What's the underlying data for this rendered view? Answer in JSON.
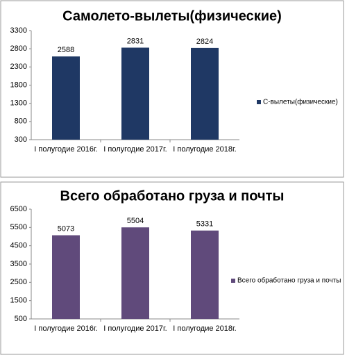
{
  "chart_data": [
    {
      "type": "bar",
      "title": "Самолето-вылеты(физические)",
      "categories": [
        "I полугодие 2016г.",
        "I полугодие 2017г.",
        "I полугодие 2018г."
      ],
      "series": [
        {
          "name": "С-вылеты(физические)",
          "color": "#1f3864",
          "values": [
            2588,
            2831,
            2824
          ]
        }
      ],
      "ylim": [
        300,
        3300
      ],
      "yticks": [
        300,
        800,
        1300,
        1800,
        2300,
        2800,
        3300
      ],
      "grid": false,
      "legend": "right"
    },
    {
      "type": "bar",
      "title": "Всего обработано груза и почты",
      "categories": [
        "I полугодие 2016г.",
        "I полугодие 2017г.",
        "I полугодие 2018г."
      ],
      "series": [
        {
          "name": "Всего обработано груза и почты",
          "color": "#604a7b",
          "values": [
            5073,
            5504,
            5331
          ]
        }
      ],
      "ylim": [
        500,
        6500
      ],
      "yticks": [
        500,
        1500,
        2500,
        3500,
        4500,
        5500,
        6500
      ],
      "grid": false,
      "legend": "right"
    }
  ]
}
